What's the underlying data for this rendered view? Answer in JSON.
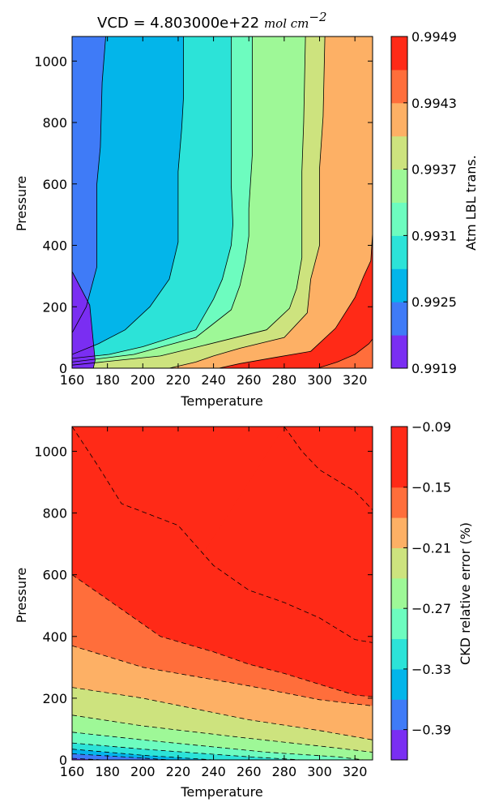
{
  "chart_data": [
    {
      "type": "heatmap",
      "subtype": "filled-contour",
      "title": "VCD = 4.803000e+22",
      "title_units": "mol cm",
      "title_units_exponent": "−2",
      "xlabel": "Temperature",
      "ylabel": "Pressure",
      "xlim": [
        160,
        330
      ],
      "ylim": [
        0,
        1080
      ],
      "xticks": [
        "160",
        "180",
        "200",
        "220",
        "240",
        "260",
        "280",
        "300",
        "320"
      ],
      "yticks": [
        "0",
        "200",
        "400",
        "600",
        "800",
        "1000"
      ],
      "colorbar": {
        "label": "Atm LBL trans.",
        "tick_labels": [
          "0.9919",
          "0.9925",
          "0.9931",
          "0.9937",
          "0.9943",
          "0.9949"
        ],
        "levels": [
          0.9919,
          0.9922,
          0.9925,
          0.9928,
          0.9931,
          0.9934,
          0.9937,
          0.994,
          0.9943,
          0.9946,
          0.9949
        ],
        "colors": [
          "#7a2ef2",
          "#3f7bf7",
          "#03b5ea",
          "#2ce3d8",
          "#6dfcbf",
          "#9ef897",
          "#cde37e",
          "#fdb065",
          "#ff6e3b",
          "#ff2a17"
        ]
      },
      "contour_lines": "solid",
      "isolines": [
        {
          "level": 0.9922,
          "points": [
            [
              160,
              315
            ],
            [
              170,
              205
            ],
            [
              173,
              25
            ],
            [
              172,
              0
            ]
          ]
        },
        {
          "level": 0.9925,
          "points": [
            [
              160,
              115
            ],
            [
              168,
              200
            ],
            [
              174,
              330
            ],
            [
              174,
              600
            ],
            [
              176,
              720
            ],
            [
              177,
              930
            ],
            [
              179,
              1080
            ]
          ]
        },
        {
          "level": 0.9928,
          "points": [
            [
              160,
              45
            ],
            [
              175,
              80
            ],
            [
              190,
              125
            ],
            [
              204,
              200
            ],
            [
              215,
              290
            ],
            [
              220,
              410
            ],
            [
              220,
              640
            ],
            [
              222,
              780
            ],
            [
              223,
              880
            ],
            [
              223,
              1080
            ]
          ]
        },
        {
          "level": 0.9931,
          "points": [
            [
              160,
              32
            ],
            [
              181,
              45
            ],
            [
              200,
              70
            ],
            [
              230,
              125
            ],
            [
              240,
              225
            ],
            [
              245,
              290
            ],
            [
              250,
              400
            ],
            [
              251,
              470
            ],
            [
              250,
              600
            ],
            [
              250,
              800
            ],
            [
              250,
              1080
            ]
          ]
        },
        {
          "level": 0.9934,
          "points": [
            [
              160,
              20
            ],
            [
              195,
              45
            ],
            [
              230,
              100
            ],
            [
              250,
              190
            ],
            [
              255,
              270
            ],
            [
              258,
              350
            ],
            [
              260,
              430
            ],
            [
              260,
              520
            ],
            [
              262,
              700
            ],
            [
              262,
              800
            ],
            [
              262,
              1080
            ]
          ]
        },
        {
          "level": 0.9937,
          "points": [
            [
              160,
              10
            ],
            [
              210,
              40
            ],
            [
              235,
              75
            ],
            [
              270,
              125
            ],
            [
              283,
              195
            ],
            [
              287,
              260
            ],
            [
              290,
              360
            ],
            [
              290,
              470
            ],
            [
              290,
              530
            ],
            [
              290,
              640
            ],
            [
              291,
              800
            ],
            [
              292,
              1080
            ]
          ]
        },
        {
          "level": 0.994,
          "points": [
            [
              215,
              0
            ],
            [
              230,
              20
            ],
            [
              240,
              40
            ],
            [
              255,
              65
            ],
            [
              280,
              100
            ],
            [
              293,
              180
            ],
            [
              295,
              290
            ],
            [
              300,
              400
            ],
            [
              300,
              550
            ],
            [
              300,
              650
            ],
            [
              302,
              820
            ],
            [
              303,
              1080
            ]
          ]
        },
        {
          "level": 0.9943,
          "points": [
            [
              243,
              0
            ],
            [
              255,
              15
            ],
            [
              275,
              35
            ],
            [
              295,
              55
            ],
            [
              309,
              130
            ],
            [
              320,
              230
            ],
            [
              325,
              300
            ],
            [
              329,
              350
            ],
            [
              330,
              440
            ],
            [
              330,
              800
            ],
            [
              331,
              1080
            ]
          ]
        },
        {
          "level": 0.9946,
          "points": [
            [
              299,
              0
            ],
            [
              310,
              20
            ],
            [
              320,
              45
            ],
            [
              328,
              80
            ],
            [
              330,
              95
            ]
          ]
        }
      ]
    },
    {
      "type": "heatmap",
      "subtype": "filled-contour",
      "xlabel": "Temperature",
      "ylabel": "Pressure",
      "xlim": [
        160,
        330
      ],
      "ylim": [
        0,
        1080
      ],
      "xticks": [
        "160",
        "180",
        "200",
        "220",
        "240",
        "260",
        "280",
        "300",
        "320"
      ],
      "yticks": [
        "0",
        "200",
        "400",
        "600",
        "800",
        "1000"
      ],
      "colorbar": {
        "label": "CKD relative error (%)",
        "tick_labels": [
          "−0.09",
          "−0.15",
          "−0.21",
          "−0.27",
          "−0.33",
          "−0.39"
        ],
        "levels": [
          -0.42,
          -0.39,
          -0.36,
          -0.33,
          -0.3,
          -0.27,
          -0.24,
          -0.21,
          -0.18,
          -0.15,
          -0.12,
          -0.09
        ],
        "colors": [
          "#7a2ef2",
          "#3f7bf7",
          "#03b5ea",
          "#2ce3d8",
          "#6dfcbf",
          "#9ef897",
          "#cde37e",
          "#fdb065",
          "#ff6e3b",
          "#ff2a17",
          "#ff2a17"
        ]
      },
      "contour_lines": "dashed",
      "isolines": [
        {
          "level": -0.36,
          "points": [
            [
              160,
              5
            ],
            [
              170,
              2
            ],
            [
              178,
              0
            ]
          ]
        },
        {
          "level": -0.33,
          "points": [
            [
              160,
              20
            ],
            [
              195,
              8
            ],
            [
              215,
              0
            ]
          ]
        },
        {
          "level": -0.3,
          "points": [
            [
              160,
              35
            ],
            [
              200,
              15
            ],
            [
              240,
              0
            ]
          ]
        },
        {
          "level": -0.27,
          "points": [
            [
              160,
              55
            ],
            [
              200,
              35
            ],
            [
              260,
              10
            ],
            [
              290,
              0
            ]
          ]
        },
        {
          "level": -0.24,
          "points": [
            [
              160,
              90
            ],
            [
              200,
              65
            ],
            [
              270,
              25
            ],
            [
              310,
              10
            ],
            [
              325,
              0
            ]
          ]
        },
        {
          "level": -0.21,
          "points": [
            [
              160,
              145
            ],
            [
              200,
              110
            ],
            [
              260,
              70
            ],
            [
              300,
              45
            ],
            [
              330,
              25
            ]
          ]
        },
        {
          "level": -0.18,
          "points": [
            [
              160,
              235
            ],
            [
              200,
              200
            ],
            [
              260,
              130
            ],
            [
              300,
              95
            ],
            [
              330,
              65
            ]
          ]
        },
        {
          "level": -0.15,
          "points": [
            [
              160,
              370
            ],
            [
              200,
              300
            ],
            [
              260,
              240
            ],
            [
              300,
              195
            ],
            [
              330,
              175
            ]
          ]
        },
        {
          "level": -0.12,
          "points": [
            [
              160,
              600
            ],
            [
              185,
              500
            ],
            [
              210,
              400
            ],
            [
              240,
              350
            ],
            [
              260,
              310
            ],
            [
              280,
              280
            ],
            [
              300,
              245
            ],
            [
              320,
              210
            ],
            [
              330,
              205
            ]
          ]
        },
        {
          "level": -0.09,
          "points": [
            [
              160,
              1080
            ],
            [
              175,
              950
            ],
            [
              188,
              830
            ],
            [
              220,
              760
            ],
            [
              240,
              630
            ],
            [
              260,
              550
            ],
            [
              280,
              510
            ],
            [
              300,
              460
            ],
            [
              320,
              390
            ],
            [
              330,
              380
            ]
          ]
        },
        {
          "level": -0.06,
          "points": [
            [
              280,
              1080
            ],
            [
              290,
              1000
            ],
            [
              300,
              940
            ],
            [
              320,
              870
            ],
            [
              330,
              810
            ]
          ]
        }
      ]
    }
  ]
}
